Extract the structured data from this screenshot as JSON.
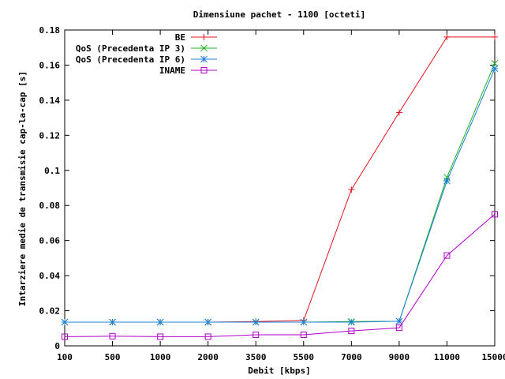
{
  "chart_data": {
    "type": "line",
    "title": "Dimensiune pachet - 1100 [octeti]",
    "xlabel": "Debit [kbps]",
    "ylabel": "Intarziere medie de transmisie cap-la-cap [s]",
    "categories": [
      "100",
      "500",
      "1000",
      "2000",
      "3500",
      "5500",
      "7000",
      "9000",
      "11000",
      "15000"
    ],
    "ylim": [
      0,
      0.18
    ],
    "yticks": [
      "0",
      "0.02",
      "0.04",
      "0.06",
      "0.08",
      "0.1",
      "0.12",
      "0.14",
      "0.16",
      "0.18"
    ],
    "grid": false,
    "legend_position": "top-right",
    "series": [
      {
        "name": "BE",
        "color": "#e0141e",
        "marker": "plus",
        "values": [
          0.0135,
          0.0135,
          0.0135,
          0.0135,
          0.0138,
          0.0145,
          0.089,
          0.133,
          0.176,
          0.176
        ]
      },
      {
        "name": "QoS (Precedenta IP 3)",
        "color": "#21b021",
        "marker": "x",
        "values": [
          0.0135,
          0.0135,
          0.0135,
          0.0135,
          0.0135,
          0.0135,
          0.0138,
          0.014,
          0.096,
          0.161
        ]
      },
      {
        "name": "QoS (Precedenta IP 6)",
        "color": "#1f7fd8",
        "marker": "star",
        "values": [
          0.0135,
          0.0135,
          0.0135,
          0.0135,
          0.0135,
          0.0135,
          0.0135,
          0.014,
          0.094,
          0.158
        ]
      },
      {
        "name": "INAME",
        "color": "#b000c8",
        "marker": "square",
        "values": [
          0.0052,
          0.0055,
          0.0052,
          0.0052,
          0.0063,
          0.0063,
          0.0085,
          0.0103,
          0.0515,
          0.075
        ]
      }
    ]
  }
}
